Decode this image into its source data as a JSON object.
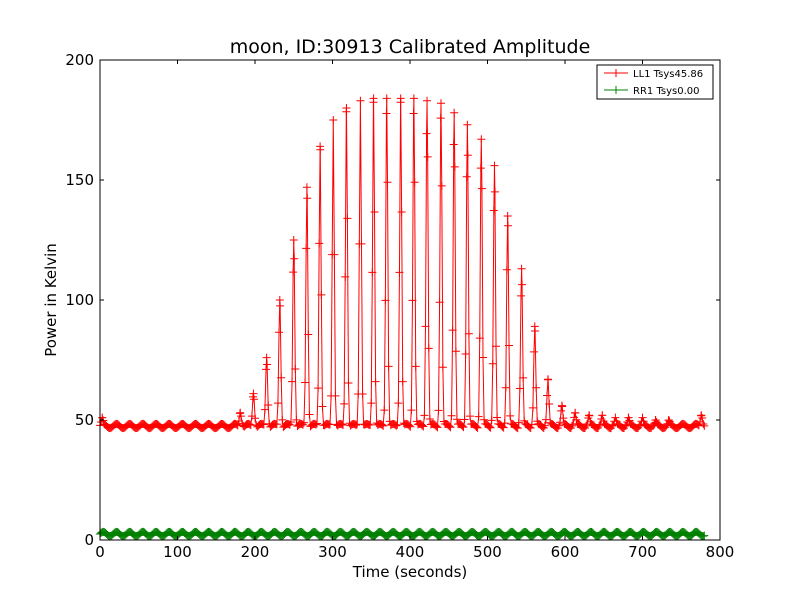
{
  "chart_data": {
    "type": "line",
    "title": "moon, ID:30913 Calibrated Amplitude",
    "xlabel": "Time (seconds)",
    "ylabel": "Power in Kelvin",
    "xlim": [
      0,
      800
    ],
    "ylim": [
      0,
      200
    ],
    "xticks": [
      "0",
      "100",
      "200",
      "300",
      "400",
      "500",
      "600",
      "700",
      "800"
    ],
    "yticks": [
      "0",
      "50",
      "100",
      "150",
      "200"
    ],
    "grid": false,
    "legend_position": "top-right",
    "marker": "+",
    "series": [
      {
        "name": "LL1 Tsys45.86",
        "color": "#ff0000",
        "baseline": 47.5,
        "x_range": [
          0,
          780
        ],
        "sample_interval": 1.4,
        "oscillation_period": 17,
        "peaks": [
          {
            "x": 3,
            "y": 51
          },
          {
            "x": 181,
            "y": 53
          },
          {
            "x": 198,
            "y": 61
          },
          {
            "x": 215,
            "y": 76
          },
          {
            "x": 232,
            "y": 100
          },
          {
            "x": 250,
            "y": 125
          },
          {
            "x": 267,
            "y": 147
          },
          {
            "x": 284,
            "y": 164
          },
          {
            "x": 301,
            "y": 175
          },
          {
            "x": 318,
            "y": 180
          },
          {
            "x": 336,
            "y": 183
          },
          {
            "x": 353,
            "y": 184
          },
          {
            "x": 370,
            "y": 184
          },
          {
            "x": 388,
            "y": 184
          },
          {
            "x": 405,
            "y": 184
          },
          {
            "x": 422,
            "y": 183
          },
          {
            "x": 440,
            "y": 182
          },
          {
            "x": 457,
            "y": 178
          },
          {
            "x": 474,
            "y": 173
          },
          {
            "x": 492,
            "y": 167
          },
          {
            "x": 509,
            "y": 156
          },
          {
            "x": 526,
            "y": 135
          },
          {
            "x": 544,
            "y": 113
          },
          {
            "x": 561,
            "y": 89
          },
          {
            "x": 578,
            "y": 67
          },
          {
            "x": 596,
            "y": 56
          },
          {
            "x": 613,
            "y": 53
          },
          {
            "x": 631,
            "y": 52
          },
          {
            "x": 648,
            "y": 52
          },
          {
            "x": 665,
            "y": 51
          },
          {
            "x": 682,
            "y": 51
          },
          {
            "x": 700,
            "y": 51
          },
          {
            "x": 717,
            "y": 50
          },
          {
            "x": 734,
            "y": 50
          },
          {
            "x": 776,
            "y": 52
          }
        ]
      },
      {
        "name": "RR1 Tsys0.00",
        "color": "#008000",
        "baseline": 2.5,
        "x_range": [
          0,
          780
        ],
        "sample_interval": 1.4,
        "oscillation_period": 17,
        "peaks": []
      }
    ]
  }
}
